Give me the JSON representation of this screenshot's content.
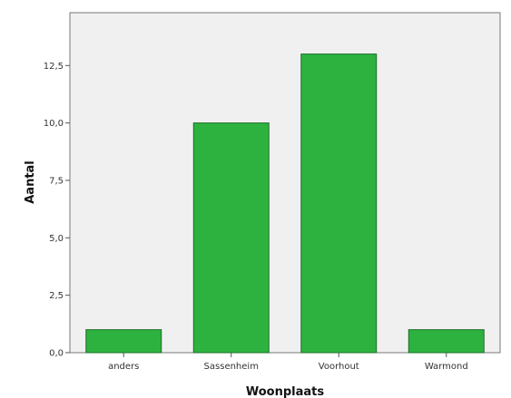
{
  "chart_data": {
    "type": "bar",
    "categories": [
      "anders",
      "Sassenheim",
      "Voorhout",
      "Warmond"
    ],
    "values": [
      1,
      10,
      13,
      1
    ],
    "xlabel": "Woonplaats",
    "ylabel": "Aantal",
    "ylim": [
      0,
      14.8
    ],
    "yticks": [
      0,
      2.5,
      5,
      7.5,
      10,
      12.5
    ],
    "ytick_labels": [
      "0,0",
      "2,5",
      "5,0",
      "7,5",
      "10,0",
      "12,5"
    ],
    "grid": false,
    "legend": "none",
    "colors": {
      "bar_fill": "#2db23f",
      "bar_stroke": "#1d6e27",
      "plot_background": "#f0f0f0",
      "axis": "#555555"
    }
  }
}
